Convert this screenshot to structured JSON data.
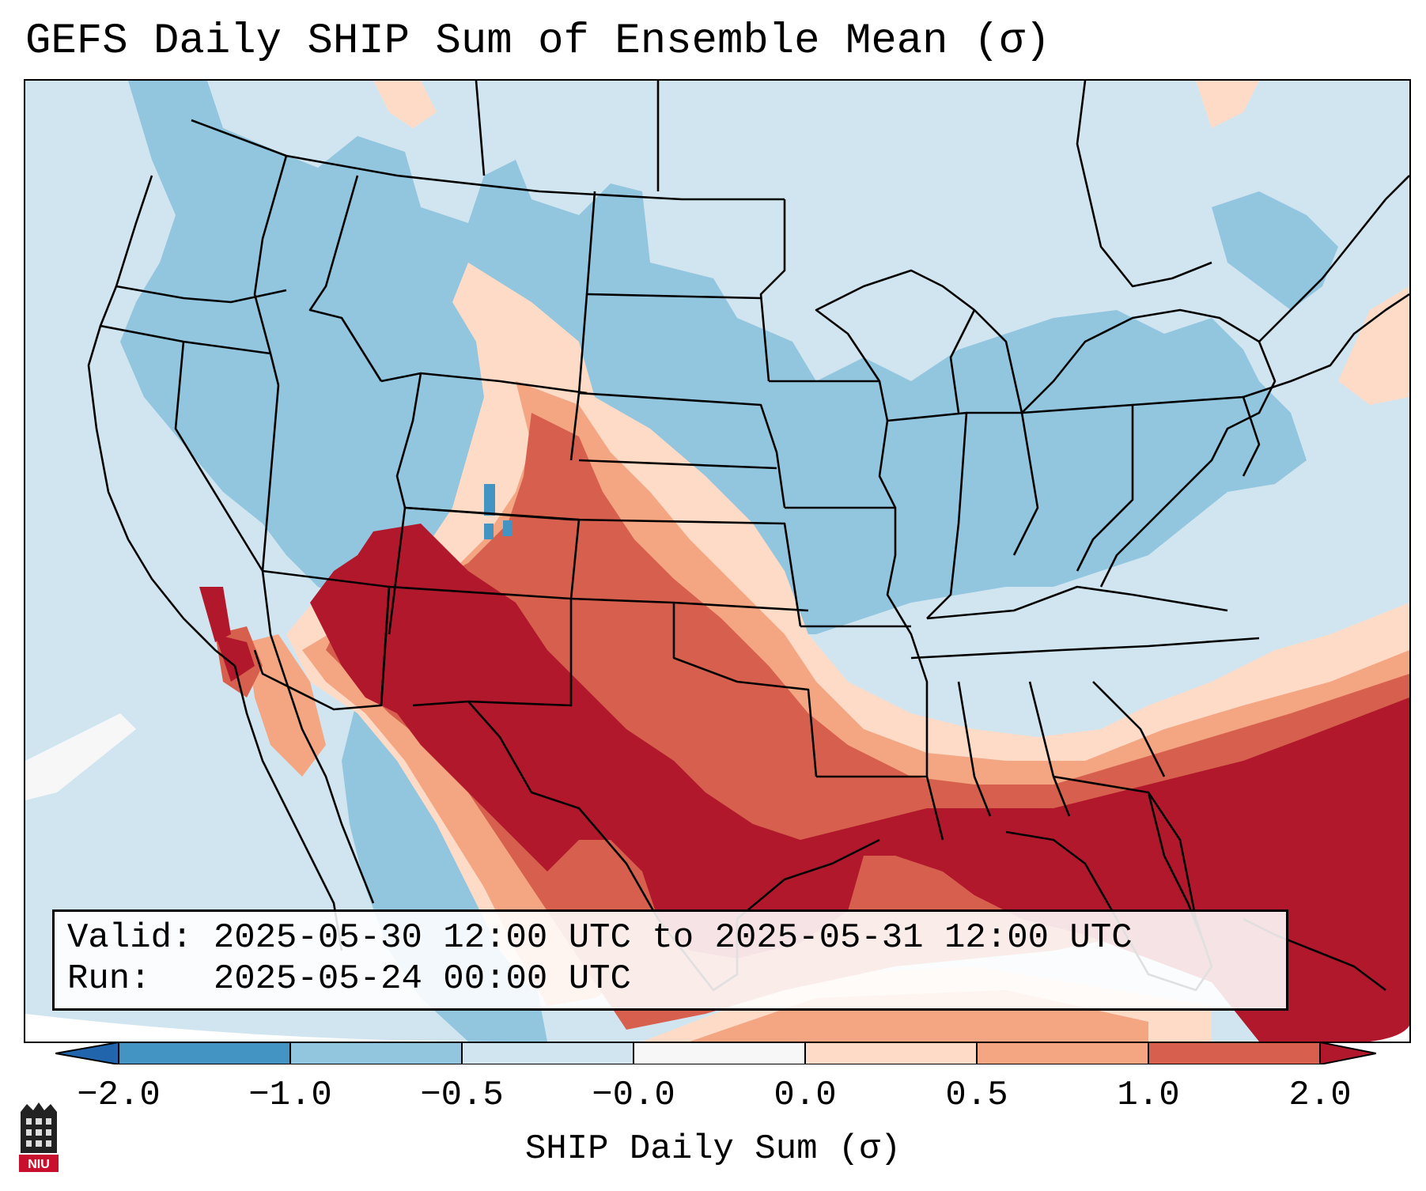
{
  "title": "GEFS Daily SHIP Sum of Ensemble Mean (σ)",
  "map": {
    "region": "Contiguous United States",
    "field": "SHIP daily sum, ensemble mean",
    "colors": {
      "below_-2.0": "#2166ac",
      "-2.0_to_-1.0": "#4393c3",
      "-1.0_to_-0.5": "#92c5de",
      "-0.5_to_0.0": "#d1e5f0",
      "0.0": "#f7f7f7",
      "0.0_to_0.5": "#fddbc7",
      "0.5_to_1.0": "#f4a582",
      "1.0_to_2.0": "#d6604d",
      "above_2.0": "#b2182b"
    }
  },
  "info": {
    "valid_label": "Valid:",
    "valid_value": "2025-05-30 12:00 UTC to 2025-05-31 12:00 UTC",
    "run_label": "Run:",
    "run_value": "2025-05-24 00:00 UTC"
  },
  "colorbar": {
    "label": "SHIP Daily Sum (σ)",
    "ticks": [
      "−2.0",
      "−1.0",
      "−0.5",
      "−0.0",
      "0.0",
      "0.5",
      "1.0",
      "2.0"
    ],
    "segment_colors": [
      "#2166ac",
      "#4393c3",
      "#92c5de",
      "#d1e5f0",
      "#f7f7f7",
      "#fddbc7",
      "#f4a582",
      "#d6604d",
      "#b2182b"
    ]
  },
  "logo": {
    "text": "NIU",
    "icon": "niu-logo-icon"
  }
}
